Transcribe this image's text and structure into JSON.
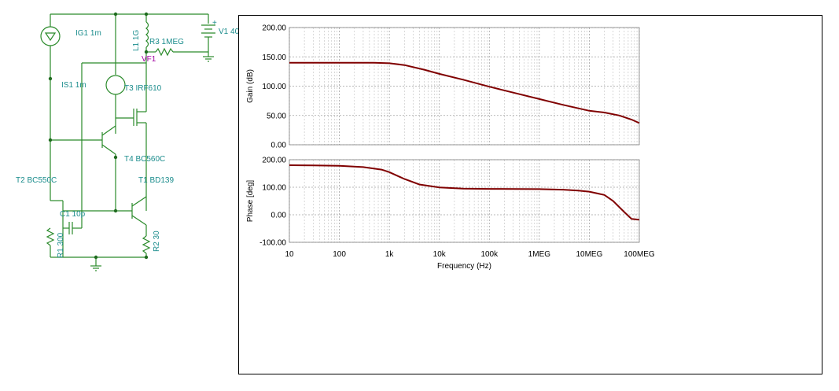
{
  "schematic": {
    "labels": {
      "ig1": "IG1 1m",
      "l1": "L1 1G",
      "r3": "R3 1MEG",
      "v1": "V1 40",
      "vf1": "VF1",
      "is1": "IS1 1m",
      "t3": "T3 IRF610",
      "t4": "T4 BC560C",
      "t2": "T2 BC550C",
      "t1": "T1 BD139",
      "c1": "C1 10p",
      "r1": "R1 300",
      "r2": "R2 30",
      "plus": "+"
    },
    "colors": {
      "wire": "#2a8a2a",
      "label": "#1a8c8c",
      "probe": "#a000a0",
      "node": "#1f6b1f"
    }
  },
  "chart_data": [
    {
      "type": "line",
      "xlabel": "",
      "ylabel": "Gain (dB)",
      "xscale": "log",
      "xlim": [
        10,
        100000000
      ],
      "ylim": [
        0,
        200
      ],
      "grid": true,
      "yticks": [
        "0.00",
        "50.00",
        "100.00",
        "150.00",
        "200.00"
      ],
      "series": [
        {
          "color": "#800000",
          "x": [
            10,
            100,
            500,
            1000,
            2000,
            5000,
            10000,
            30000,
            100000,
            300000,
            1000000,
            3000000,
            10000000,
            20000000,
            40000000,
            70000000,
            100000000
          ],
          "y": [
            140,
            140,
            140,
            139,
            136,
            128,
            121,
            111,
            99,
            89,
            78,
            68,
            58,
            55,
            50,
            43,
            37
          ]
        }
      ]
    },
    {
      "type": "line",
      "xlabel": "Frequency (Hz)",
      "ylabel": "Phase [deg]",
      "xscale": "log",
      "xlim": [
        10,
        100000000
      ],
      "ylim": [
        -100,
        200
      ],
      "grid": true,
      "yticks": [
        "-100.00",
        "0.00",
        "100.00",
        "200.00"
      ],
      "xticks": [
        "10",
        "100",
        "1k",
        "10k",
        "100k",
        "1MEG",
        "10MEG",
        "100MEG"
      ],
      "series": [
        {
          "color": "#800000",
          "x": [
            10,
            30,
            100,
            300,
            700,
            1000,
            2000,
            4000,
            10000,
            30000,
            100000,
            1000000,
            3000000,
            6000000,
            10000000,
            20000000,
            30000000,
            50000000,
            70000000,
            100000000
          ],
          "y": [
            180,
            179,
            178,
            173,
            164,
            155,
            130,
            110,
            99,
            95,
            94,
            93,
            91,
            88,
            84,
            72,
            50,
            10,
            -15,
            -18
          ]
        }
      ]
    }
  ]
}
